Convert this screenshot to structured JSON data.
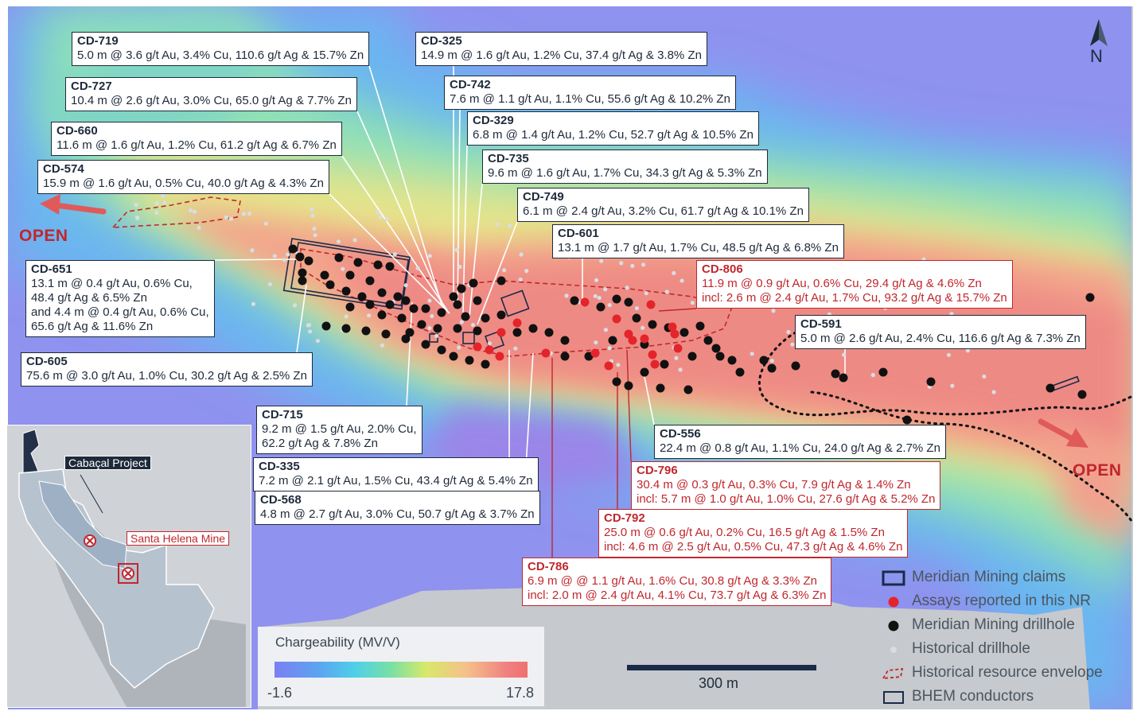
{
  "callouts": [
    {
      "id": "CD-719",
      "color": "dark",
      "lines": [
        "5.0 m @ 3.6 g/t Au, 3.4% Cu, 110.6 g/t Ag & 15.7% Zn"
      ]
    },
    {
      "id": "CD-727",
      "color": "dark",
      "lines": [
        "10.4 m @ 2.6 g/t Au, 3.0% Cu, 65.0 g/t Ag & 7.7% Zn"
      ]
    },
    {
      "id": "CD-660",
      "color": "dark",
      "lines": [
        "11.6 m @ 1.6 g/t Au, 1.2% Cu, 61.2 g/t Ag & 6.7% Zn"
      ]
    },
    {
      "id": "CD-574",
      "color": "dark",
      "lines": [
        "15.9 m @ 1.6 g/t Au, 0.5% Cu, 40.0 g/t Ag & 4.3% Zn"
      ]
    },
    {
      "id": "CD-325",
      "color": "dark",
      "lines": [
        "14.9 m @ 1.6 g/t Au, 1.2% Cu, 37.4 g/t Ag & 3.8% Zn"
      ]
    },
    {
      "id": "CD-742",
      "color": "dark",
      "lines": [
        "7.6 m @ 1.1 g/t Au, 1.1% Cu, 55.6 g/t Ag & 10.2% Zn"
      ]
    },
    {
      "id": "CD-329",
      "color": "dark",
      "lines": [
        "6.8 m @ 1.4 g/t Au, 1.2% Cu, 52.7 g/t Ag & 10.5% Zn"
      ]
    },
    {
      "id": "CD-735",
      "color": "dark",
      "lines": [
        "9.6 m @ 1.6 g/t Au, 1.7% Cu, 34.3 g/t Ag & 5.3% Zn"
      ]
    },
    {
      "id": "CD-749",
      "color": "dark",
      "lines": [
        "6.1 m @ 2.4 g/t Au, 3.2% Cu, 61.7 g/t Ag & 10.1% Zn"
      ]
    },
    {
      "id": "CD-601",
      "color": "dark",
      "lines": [
        "13.1 m @ 1.7 g/t Au, 1.7% Cu, 48.5 g/t Ag & 6.8% Zn"
      ]
    },
    {
      "id": "CD-806",
      "color": "red",
      "lines": [
        "11.9 m @ 0.9 g/t Au, 0.6% Cu, 29.4 g/t Ag & 4.6% Zn",
        "incl: 2.6 m @ 2.4 g/t Au, 1.7% Cu, 93.2 g/t Ag & 15.7% Zn"
      ]
    },
    {
      "id": "CD-651",
      "color": "dark",
      "lines": [
        "13.1 m @ 0.4 g/t Au, 0.6% Cu,",
        "48.4 g/t Ag & 6.5% Zn",
        "and 4.4 m @ 0.4 g/t Au, 0.6% Cu,",
        "65.6 g/t Ag & 11.6% Zn"
      ]
    },
    {
      "id": "CD-591",
      "color": "dark",
      "lines": [
        "5.0 m @ 2.6 g/t Au, 2.4% Cu, 116.6 g/t Ag & 7.3% Zn"
      ]
    },
    {
      "id": "CD-605",
      "color": "dark",
      "lines": [
        "75.6 m @ 3.0 g/t Au, 1.0% Cu, 30.2 g/t Ag & 2.5% Zn"
      ]
    },
    {
      "id": "CD-715",
      "color": "dark",
      "lines": [
        "9.2 m @ 1.5 g/t Au, 2.0% Cu,",
        "62.2 g/t Ag & 7.8% Zn"
      ]
    },
    {
      "id": "CD-556",
      "color": "dark",
      "lines": [
        "22.4 m @ 0.8 g/t Au, 1.1% Cu, 24.0 g/t Ag & 2.7% Zn"
      ]
    },
    {
      "id": "CD-335",
      "color": "dark",
      "lines": [
        "7.2 m @ 2.1 g/t Au, 1.5% Cu, 43.4 g/t Ag & 5.4% Zn"
      ]
    },
    {
      "id": "CD-796",
      "color": "red",
      "lines": [
        "30.4 m @ 0.3 g/t Au, 0.3% Cu, 7.9 g/t Ag & 1.4% Zn",
        "incl: 5.7 m @ 1.0 g/t Au, 1.0% Cu, 27.6 g/t Ag & 5.2% Zn"
      ]
    },
    {
      "id": "CD-568",
      "color": "dark",
      "lines": [
        "4.8 m @ 2.7 g/t Au, 3.0% Cu, 50.7 g/t Ag & 3.7% Zn"
      ]
    },
    {
      "id": "CD-792",
      "color": "red",
      "lines": [
        "25.0 m @ 0.6 g/t Au, 0.2% Cu, 16.5 g/t Ag & 1.5% Zn",
        "incl: 4.6 m @ 2.5 g/t Au, 0.5% Cu, 47.3 g/t Ag & 4.6% Zn"
      ]
    },
    {
      "id": "CD-786",
      "color": "red",
      "lines": [
        "6.9 m @ @ 1.1 g/t Au, 1.6% Cu, 30.8 g/t Ag & 3.3% Zn",
        "incl: 2.0 m @ 2.4 g/t Au, 4.1% Cu, 73.7 g/t Ag & 6.3% Zn"
      ]
    }
  ],
  "open_labels": {
    "west": "OPEN",
    "east": "OPEN"
  },
  "north_label": "N",
  "legend": {
    "claims": "Meridian Mining claims",
    "assays": "Assays reported in this NR",
    "drillhole": "Meridian Mining drillhole",
    "historical_drillhole": "Historical drillhole",
    "resource_envelope": "Historical resource envelope",
    "bhem": "BHEM conductors"
  },
  "colorbar": {
    "title": "Chargeability (MV/V)",
    "min": "-1.6",
    "max": "17.8"
  },
  "scale_label": "300 m",
  "inset": {
    "project": "Cabaçal Project",
    "mine": "Santa Helena Mine"
  },
  "colors": {
    "dark": "#1e2a3a",
    "red": "#c0272d",
    "assay": "#e4242b",
    "drillhole": "#111111",
    "historical": "#d9dde2"
  }
}
